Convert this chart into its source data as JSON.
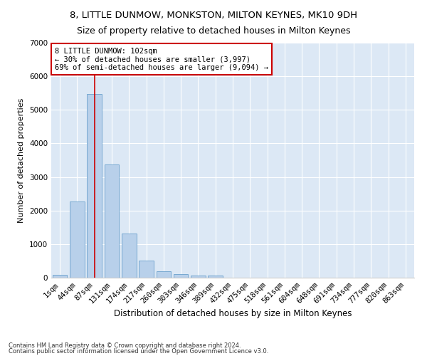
{
  "title": "8, LITTLE DUNMOW, MONKSTON, MILTON KEYNES, MK10 9DH",
  "subtitle": "Size of property relative to detached houses in Milton Keynes",
  "xlabel": "Distribution of detached houses by size in Milton Keynes",
  "ylabel": "Number of detached properties",
  "footnote1": "Contains HM Land Registry data © Crown copyright and database right 2024.",
  "footnote2": "Contains public sector information licensed under the Open Government Licence v3.0.",
  "bar_labels": [
    "1sqm",
    "44sqm",
    "87sqm",
    "131sqm",
    "174sqm",
    "217sqm",
    "260sqm",
    "303sqm",
    "346sqm",
    "389sqm",
    "432sqm",
    "475sqm",
    "518sqm",
    "561sqm",
    "604sqm",
    "648sqm",
    "691sqm",
    "734sqm",
    "777sqm",
    "820sqm",
    "863sqm"
  ],
  "bar_values": [
    80,
    2280,
    5480,
    3380,
    1310,
    500,
    185,
    100,
    65,
    60,
    0,
    0,
    0,
    0,
    0,
    0,
    0,
    0,
    0,
    0,
    0
  ],
  "bar_color": "#b8d0ea",
  "bar_edge_color": "#6aa0cc",
  "vline_x": 2.0,
  "vline_color": "#cc0000",
  "annotation_text": "8 LITTLE DUNMOW: 102sqm\n← 30% of detached houses are smaller (3,997)\n69% of semi-detached houses are larger (9,094) →",
  "annotation_box_color": "#ffffff",
  "annotation_box_edge": "#cc0000",
  "ylim": [
    0,
    7000
  ],
  "yticks": [
    0,
    1000,
    2000,
    3000,
    4000,
    5000,
    6000,
    7000
  ],
  "bg_color": "#dce8f5",
  "title_fontsize": 9.5,
  "subtitle_fontsize": 9,
  "ylabel_fontsize": 8,
  "xlabel_fontsize": 8.5,
  "tick_fontsize": 7.5,
  "annot_fontsize": 7.5
}
